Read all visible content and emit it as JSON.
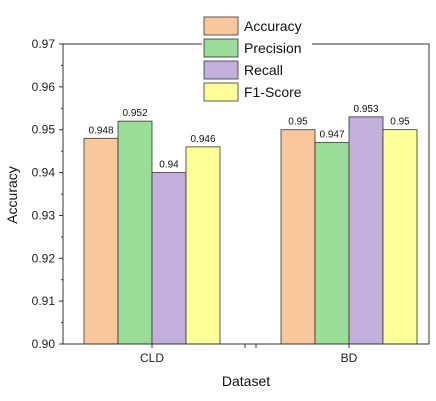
{
  "chart_data": {
    "type": "bar",
    "title": "",
    "xlabel": "Dataset",
    "ylabel": "Accuracy",
    "ylim": [
      0.9,
      0.97
    ],
    "ytick_labels": [
      "0.90",
      "0.91",
      "0.92",
      "0.93",
      "0.94",
      "0.95",
      "0.96",
      "0.97"
    ],
    "categories": [
      "CLD",
      "BD"
    ],
    "series": [
      {
        "name": "Accuracy",
        "values": [
          0.948,
          0.95
        ],
        "labels": [
          "0.948",
          "0.95"
        ],
        "color": "#f8c79c"
      },
      {
        "name": "Precision",
        "values": [
          0.952,
          0.947
        ],
        "labels": [
          "0.952",
          "0.947"
        ],
        "color": "#99dd99"
      },
      {
        "name": "Recall",
        "values": [
          0.94,
          0.953
        ],
        "labels": [
          "0.94",
          "0.953"
        ],
        "color": "#c3b0da"
      },
      {
        "name": "F1-Score",
        "values": [
          0.946,
          0.95
        ],
        "labels": [
          "0.946",
          "0.95"
        ],
        "color": "#ffff99"
      }
    ],
    "legend_position": "top-center",
    "grid": false
  }
}
